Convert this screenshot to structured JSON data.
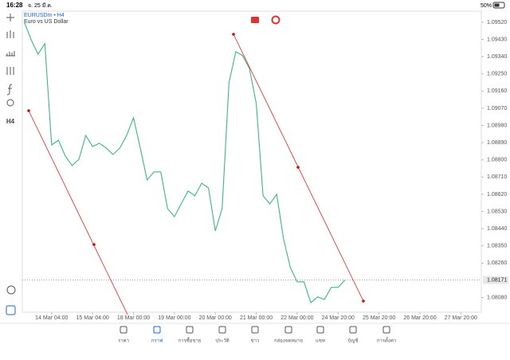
{
  "status_bar": {
    "time": "16:28",
    "date": "จ. 25 มี.ค.",
    "battery": "50%"
  },
  "toolbar": {
    "timeframe": "H4"
  },
  "tabs": [
    "ราคา",
    "กราฟ",
    "การซื้อขาย",
    "ประวัติ",
    "ข่าว",
    "กล่องจดหมาย",
    "แชท",
    "บัญชี",
    "การตั้งค่า"
  ],
  "active_tab": 1,
  "chart_data": {
    "type": "line",
    "title": "EURUSDm • H4",
    "subtitle": "Euro vs US Dollar",
    "color": "#3cb48c",
    "values": [
      1.0952,
      1.09428,
      1.09353,
      1.09408,
      1.08878,
      1.08903,
      1.0882,
      1.0877,
      1.08803,
      1.08928,
      1.0887,
      1.08887,
      1.08862,
      1.08828,
      1.08862,
      1.08928,
      1.0902,
      1.08862,
      1.08695,
      1.08737,
      1.08737,
      1.08545,
      1.08503,
      1.0857,
      1.08637,
      1.08612,
      1.08678,
      1.08653,
      1.08428,
      1.08545,
      1.09203,
      1.09366,
      1.09345,
      1.09278,
      1.09095,
      1.08612,
      1.0857,
      1.0862,
      1.08387,
      1.08237,
      1.08162,
      1.08162,
      1.08053,
      1.08083,
      1.0807,
      1.08133,
      1.08133,
      1.08171
    ],
    "xlim": [
      -0.3,
      67
    ],
    "xticks": [
      {
        "value": 4,
        "label": "14 Mar 04:00"
      },
      {
        "value": 10,
        "label": "15 Mar 04:00"
      },
      {
        "value": 16,
        "label": "18 Mar 00:00"
      },
      {
        "value": 22,
        "label": "19 Mar 00:00"
      },
      {
        "value": 28,
        "label": "20 Mar 00:00"
      },
      {
        "value": 34,
        "label": "21 Mar 00:00"
      },
      {
        "value": 40,
        "label": "22 Mar 00:00"
      },
      {
        "value": 46,
        "label": "24 Mar 20:00"
      },
      {
        "value": 52,
        "label": "25 Mar 20:00"
      },
      {
        "value": 58,
        "label": "26 Mar 20:00"
      },
      {
        "value": 64,
        "label": "27 Mar 20:00"
      }
    ],
    "ylim": [
      1.08003,
      1.09578
    ],
    "yticks": [
      {
        "value": 1.0952,
        "label": "1.09520"
      },
      {
        "value": 1.0943,
        "label": "1.09430"
      },
      {
        "value": 1.0934,
        "label": "1.09340"
      },
      {
        "value": 1.0925,
        "label": "1.09250"
      },
      {
        "value": 1.0916,
        "label": "1.09160"
      },
      {
        "value": 1.0907,
        "label": "1.09070"
      },
      {
        "value": 1.0898,
        "label": "1.08980"
      },
      {
        "value": 1.0889,
        "label": "1.08890"
      },
      {
        "value": 1.088,
        "label": "1.08800"
      },
      {
        "value": 1.0871,
        "label": "1.08710"
      },
      {
        "value": 1.0862,
        "label": "1.08620"
      },
      {
        "value": 1.0853,
        "label": "1.08530"
      },
      {
        "value": 1.0844,
        "label": "1.08440"
      },
      {
        "value": 1.0835,
        "label": "1.08350"
      },
      {
        "value": 1.0826,
        "label": "1.08260"
      },
      {
        "value": 1.0808,
        "label": "1.08080"
      }
    ],
    "price_line": 1.08171
  }
}
